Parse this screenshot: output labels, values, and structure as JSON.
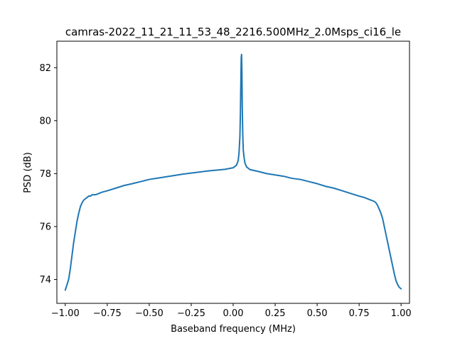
{
  "chart_data": {
    "type": "line",
    "title": "camras-2022_11_21_11_53_48_2216.500MHz_2.0Msps_ci16_le",
    "xlabel": "Baseband frequency (MHz)",
    "ylabel": "PSD (dB)",
    "xlim": [
      -1.05,
      1.05
    ],
    "ylim": [
      73.1,
      83.0
    ],
    "xticks": [
      -1.0,
      -0.75,
      -0.5,
      -0.25,
      0.0,
      0.25,
      0.5,
      0.75,
      1.0
    ],
    "xtick_labels": [
      "−1.00",
      "−0.75",
      "−0.50",
      "−0.25",
      "0.00",
      "0.25",
      "0.50",
      "0.75",
      "1.00"
    ],
    "yticks": [
      74,
      76,
      78,
      80,
      82
    ],
    "ytick_labels": [
      "74",
      "76",
      "78",
      "80",
      "82"
    ],
    "grid": false,
    "legend": "none",
    "line_color": "#1f77b4",
    "series": [
      {
        "x": [
          -1.0,
          -0.99,
          -0.98,
          -0.97,
          -0.96,
          -0.95,
          -0.94,
          -0.93,
          -0.92,
          -0.91,
          -0.9,
          -0.89,
          -0.88,
          -0.87,
          -0.86,
          -0.85,
          -0.84,
          -0.82,
          -0.8,
          -0.78,
          -0.75,
          -0.7,
          -0.65,
          -0.6,
          -0.55,
          -0.5,
          -0.45,
          -0.4,
          -0.35,
          -0.3,
          -0.25,
          -0.2,
          -0.15,
          -0.1,
          -0.05,
          0.0,
          0.02,
          0.03,
          0.035,
          0.04,
          0.043,
          0.046,
          0.048,
          0.05,
          0.052,
          0.054,
          0.057,
          0.06,
          0.065,
          0.07,
          0.08,
          0.1,
          0.15,
          0.2,
          0.25,
          0.3,
          0.35,
          0.4,
          0.45,
          0.5,
          0.55,
          0.6,
          0.65,
          0.7,
          0.75,
          0.78,
          0.8,
          0.82,
          0.84,
          0.85,
          0.86,
          0.87,
          0.88,
          0.89,
          0.9,
          0.91,
          0.92,
          0.93,
          0.94,
          0.95,
          0.96,
          0.97,
          0.98,
          0.99,
          1.0
        ],
        "y": [
          73.6,
          73.8,
          74.0,
          74.4,
          74.9,
          75.4,
          75.8,
          76.2,
          76.5,
          76.75,
          76.9,
          77.0,
          77.05,
          77.1,
          77.15,
          77.15,
          77.2,
          77.2,
          77.25,
          77.3,
          77.35,
          77.45,
          77.55,
          77.62,
          77.7,
          77.78,
          77.83,
          77.88,
          77.93,
          77.98,
          78.02,
          78.06,
          78.1,
          78.13,
          78.16,
          78.22,
          78.32,
          78.5,
          78.8,
          79.4,
          80.3,
          81.6,
          82.4,
          82.5,
          81.8,
          80.5,
          79.5,
          78.9,
          78.6,
          78.4,
          78.25,
          78.15,
          78.08,
          78.0,
          77.95,
          77.9,
          77.82,
          77.78,
          77.7,
          77.62,
          77.52,
          77.45,
          77.35,
          77.25,
          77.15,
          77.1,
          77.05,
          77.0,
          76.95,
          76.9,
          76.8,
          76.65,
          76.5,
          76.3,
          76.0,
          75.7,
          75.4,
          75.1,
          74.8,
          74.5,
          74.2,
          73.95,
          73.8,
          73.7,
          73.65
        ]
      }
    ]
  }
}
